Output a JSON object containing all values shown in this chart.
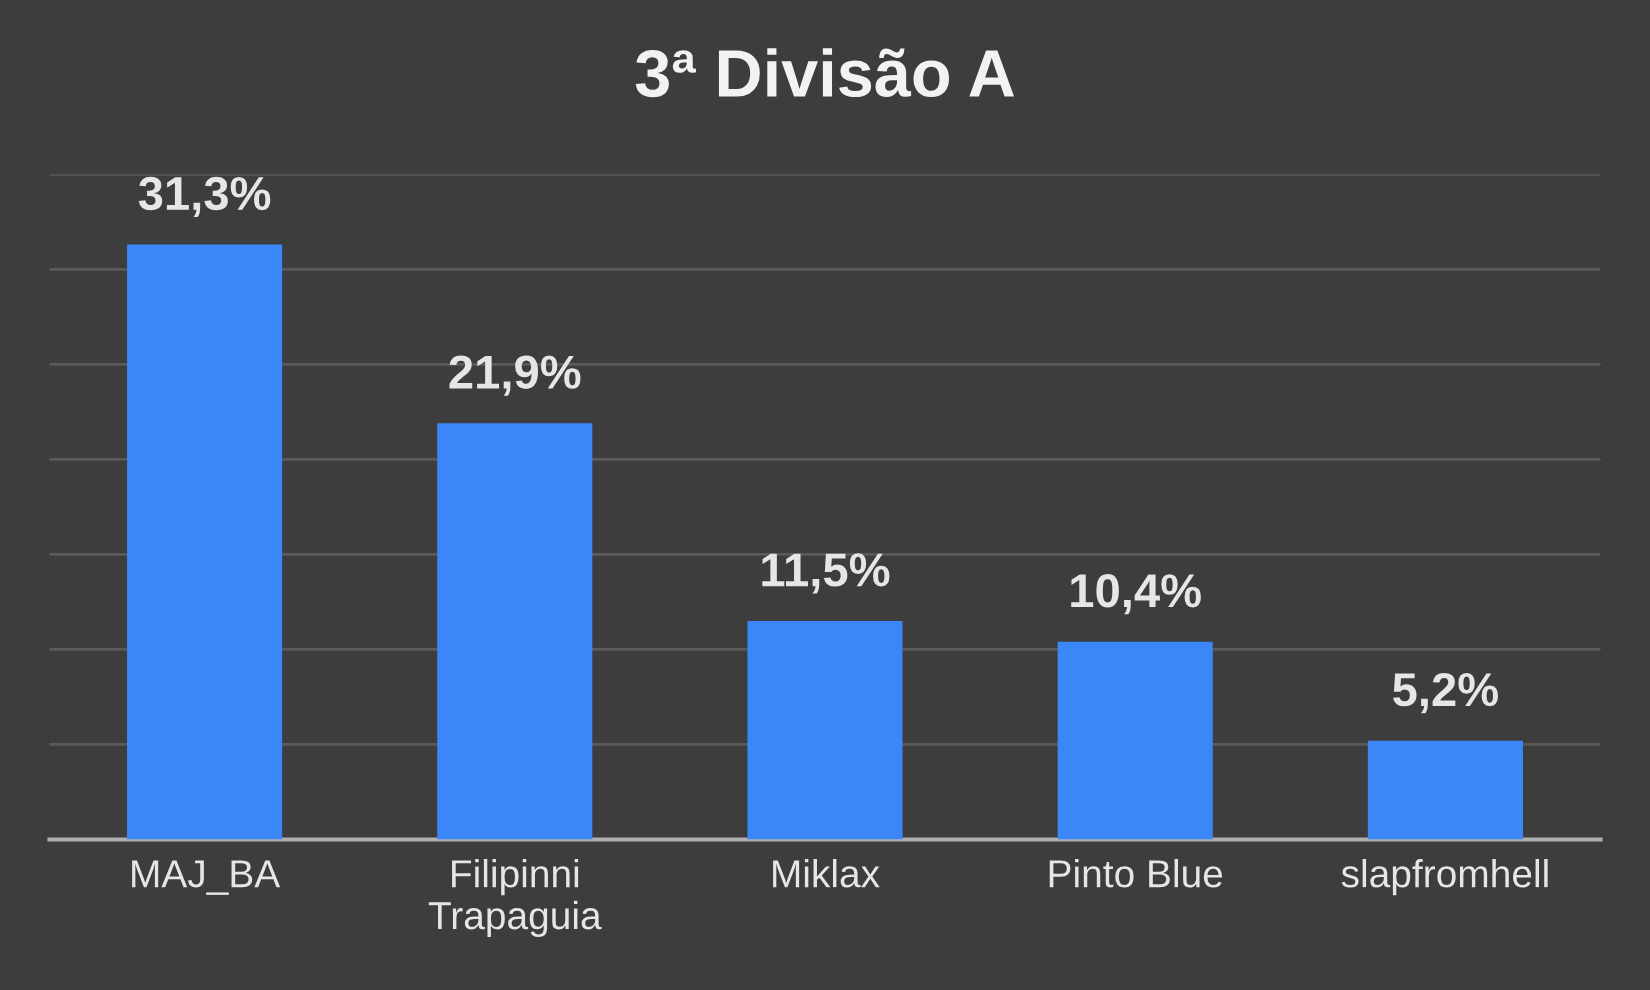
{
  "chart_data": {
    "type": "bar",
    "title": "3ª Divisão A",
    "categories": [
      "MAJ_BA",
      "Filipinni\nTrapaguia",
      "Miklax",
      "Pinto Blue",
      "slapfromhell"
    ],
    "values": [
      31.3,
      21.9,
      11.5,
      10.4,
      5.2
    ],
    "value_labels": [
      "31,3%",
      "21,9%",
      "11,5%",
      "10,4%",
      "5,2%"
    ],
    "color": "#3b87f7",
    "ylim": [
      0,
      35
    ],
    "yticks": [
      {
        "value": 0,
        "label": null
      },
      {
        "value": 5,
        "label": null
      },
      {
        "value": 10,
        "label": null
      },
      {
        "value": 15,
        "label": null
      },
      {
        "value": 20,
        "label": null
      },
      {
        "value": 25,
        "label": null
      },
      {
        "value": 30,
        "label": null
      },
      {
        "value": 35,
        "label": null
      }
    ],
    "grid": "y",
    "tick_labels": "x"
  }
}
